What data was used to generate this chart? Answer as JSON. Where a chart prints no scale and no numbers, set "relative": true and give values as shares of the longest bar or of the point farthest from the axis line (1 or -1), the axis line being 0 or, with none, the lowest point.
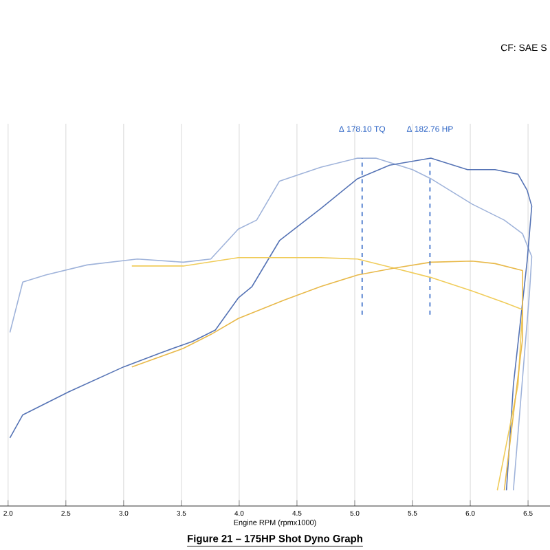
{
  "chart_data": {
    "type": "line",
    "title": "Figure 21 – 175HP Shot Dyno Graph",
    "subtitle": "CF: SAE S",
    "xlabel": "Engine RPM (rpmx1000)",
    "relative": true,
    "grid": "x",
    "marker": "none",
    "line_style": "solid",
    "xlim": [
      1.93,
      6.69
    ],
    "xticks": [
      {
        "value": 2,
        "label": "2.0"
      },
      2.5,
      {
        "value": 3,
        "label": "3.0"
      },
      3.5,
      {
        "value": 4,
        "label": "4.0"
      },
      4.5,
      {
        "value": 5,
        "label": "5.0"
      },
      5.5,
      {
        "value": 6,
        "label": "6.0"
      },
      6.5
    ],
    "series": [
      {
        "color": "#9fb3da",
        "x": [
          2.016,
          2.127,
          2.325,
          2.683,
          3.119,
          3.516,
          3.754,
          3.992,
          4.151,
          4.349,
          4.706,
          5.024,
          5.183,
          5.5,
          5.659,
          6.016,
          6.294,
          6.452,
          6.532,
          6.512,
          6.373
        ],
        "values": [
          0.499,
          0.644,
          0.664,
          0.693,
          0.71,
          0.701,
          0.71,
          0.796,
          0.822,
          0.934,
          0.974,
          1.0,
          1.0,
          0.967,
          0.941,
          0.868,
          0.822,
          0.783,
          0.717,
          0.611,
          0.045
        ]
      },
      {
        "color": "#5573b5",
        "x": [
          2.016,
          2.127,
          2.524,
          3.0,
          3.317,
          3.595,
          3.794,
          3.992,
          4.111,
          4.349,
          4.706,
          5.024,
          5.302,
          5.659,
          5.976,
          6.214,
          6.413,
          6.492,
          6.532,
          6.492,
          6.373,
          6.313
        ],
        "values": [
          0.196,
          0.262,
          0.328,
          0.4,
          0.44,
          0.473,
          0.506,
          0.598,
          0.631,
          0.763,
          0.855,
          0.941,
          0.98,
          1.0,
          0.967,
          0.967,
          0.954,
          0.908,
          0.862,
          0.704,
          0.348,
          0.045
        ]
      },
      {
        "color": "#f0cc5a",
        "x": [
          3.071,
          3.516,
          3.992,
          4.706,
          5.024,
          5.341,
          5.659,
          6.016,
          6.294,
          6.452,
          6.413,
          6.234
        ],
        "values": [
          0.69,
          0.69,
          0.714,
          0.714,
          0.71,
          0.684,
          0.657,
          0.618,
          0.585,
          0.565,
          0.348,
          0.045
        ]
      },
      {
        "color": "#e8b94a",
        "x": [
          3.071,
          3.516,
          3.754,
          3.992,
          4.389,
          4.706,
          5.024,
          5.341,
          5.659,
          6.016,
          6.214,
          6.452,
          6.452,
          6.294
        ],
        "values": [
          0.4,
          0.453,
          0.493,
          0.539,
          0.592,
          0.631,
          0.664,
          0.684,
          0.701,
          0.704,
          0.697,
          0.677,
          0.479,
          0.045
        ]
      }
    ],
    "ref_lines": [
      {
        "axis": "x",
        "value": 5.064,
        "label": "Δ 178.10 TQ",
        "color": "#2a62c4",
        "line_style": "dashed"
      },
      {
        "axis": "x",
        "value": 5.651,
        "label": "Δ 182.76 HP",
        "color": "#2a62c4",
        "line_style": "dashed"
      }
    ]
  }
}
